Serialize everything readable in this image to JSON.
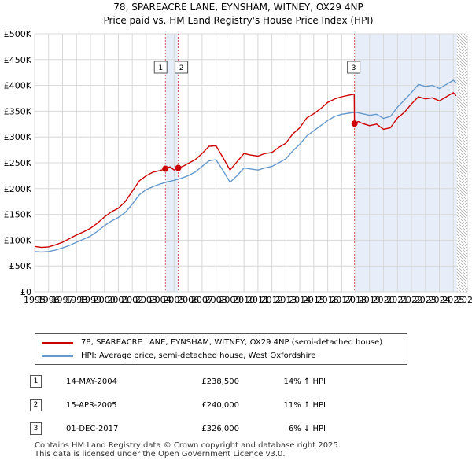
{
  "chart_data": {
    "type": "line",
    "title": "78, SPAREACRE LANE, EYNSHAM, WITNEY, OX29 4NP",
    "subtitle": "Price paid vs. HM Land Registry's House Price Index (HPI)",
    "xlabel": "",
    "ylabel": "",
    "xlim": [
      1995,
      2026
    ],
    "ylim": [
      0,
      500000
    ],
    "y_ticks": [
      0,
      50000,
      100000,
      150000,
      200000,
      250000,
      300000,
      350000,
      400000,
      450000,
      500000
    ],
    "y_tick_labels": [
      "£0",
      "£50K",
      "£100K",
      "£150K",
      "£200K",
      "£250K",
      "£300K",
      "£350K",
      "£400K",
      "£450K",
      "£500K"
    ],
    "x_ticks": [
      1995,
      1996,
      1997,
      1998,
      1999,
      2000,
      2001,
      2002,
      2003,
      2004,
      2005,
      2006,
      2007,
      2008,
      2009,
      2010,
      2011,
      2012,
      2013,
      2014,
      2015,
      2016,
      2017,
      2018,
      2019,
      2020,
      2021,
      2022,
      2023,
      2024,
      2025,
      2026
    ],
    "x_tick_labels": [
      "1995",
      "1996",
      "1997",
      "1998",
      "1999",
      "2000",
      "2001",
      "2002",
      "2003",
      "2004",
      "2005",
      "2006",
      "2007",
      "2008",
      "2009",
      "2010",
      "2011",
      "2012",
      "2013",
      "2014",
      "2015",
      "2016",
      "2017",
      "2018",
      "2019",
      "2020",
      "2021",
      "2022",
      "2023",
      "2024",
      "2025",
      "2026"
    ],
    "grid": true,
    "series": [
      {
        "name": "78, SPAREACRE LANE, EYNSHAM, WITNEY, OX29 4NP (semi-detached house)",
        "color": "#cc0000",
        "x": [
          1995.0,
          1995.5,
          1996.0,
          1996.5,
          1997.0,
          1997.5,
          1998.0,
          1998.5,
          1999.0,
          1999.5,
          2000.0,
          2000.5,
          2001.0,
          2001.5,
          2002.0,
          2002.5,
          2003.0,
          2003.5,
          2004.0,
          2004.37,
          2004.7,
          2005.0,
          2005.29,
          2005.7,
          2006.0,
          2006.5,
          2007.0,
          2007.5,
          2008.0,
          2008.5,
          2009.0,
          2009.5,
          2010.0,
          2010.5,
          2011.0,
          2011.5,
          2012.0,
          2012.5,
          2013.0,
          2013.5,
          2014.0,
          2014.5,
          2015.0,
          2015.5,
          2016.0,
          2016.5,
          2017.0,
          2017.5,
          2017.9,
          2017.92,
          2018.2,
          2018.5,
          2019.0,
          2019.5,
          2020.0,
          2020.5,
          2021.0,
          2021.5,
          2022.0,
          2022.5,
          2023.0,
          2023.5,
          2024.0,
          2024.5,
          2025.0,
          2025.2
        ],
        "values": [
          88000,
          86000,
          87000,
          91000,
          96000,
          103000,
          110000,
          116000,
          123000,
          133000,
          145000,
          155000,
          162000,
          175000,
          195000,
          215000,
          225000,
          232000,
          235000,
          238500,
          242000,
          236000,
          240000,
          244000,
          249000,
          256000,
          268000,
          282000,
          283000,
          260000,
          236000,
          252000,
          268000,
          265000,
          263000,
          268000,
          270000,
          280000,
          288000,
          306000,
          318000,
          337000,
          345000,
          355000,
          367000,
          374000,
          378000,
          381000,
          383000,
          326000,
          330000,
          326000,
          322000,
          325000,
          315000,
          318000,
          337000,
          348000,
          364000,
          378000,
          374000,
          376000,
          370000,
          378000,
          386000,
          380000
        ]
      },
      {
        "name": "HPI: Average price, semi-detached house, West Oxfordshire",
        "color": "#6699cc",
        "x": [
          1995.0,
          1995.5,
          1996.0,
          1996.5,
          1997.0,
          1997.5,
          1998.0,
          1998.5,
          1999.0,
          1999.5,
          2000.0,
          2000.5,
          2001.0,
          2001.5,
          2002.0,
          2002.5,
          2003.0,
          2003.5,
          2004.0,
          2004.5,
          2005.0,
          2005.5,
          2006.0,
          2006.5,
          2007.0,
          2007.5,
          2008.0,
          2008.5,
          2009.0,
          2009.5,
          2010.0,
          2010.5,
          2011.0,
          2011.5,
          2012.0,
          2012.5,
          2013.0,
          2013.5,
          2014.0,
          2014.5,
          2015.0,
          2015.5,
          2016.0,
          2016.5,
          2017.0,
          2017.5,
          2018.0,
          2018.5,
          2019.0,
          2019.5,
          2020.0,
          2020.5,
          2021.0,
          2021.5,
          2022.0,
          2022.5,
          2023.0,
          2023.5,
          2024.0,
          2024.5,
          2025.0,
          2025.2
        ],
        "values": [
          78000,
          77000,
          78000,
          81000,
          85000,
          90000,
          96000,
          102000,
          108000,
          117000,
          128000,
          137000,
          144000,
          154000,
          170000,
          188000,
          198000,
          204000,
          209000,
          213000,
          216000,
          220000,
          225000,
          232000,
          243000,
          254000,
          256000,
          235000,
          212000,
          225000,
          240000,
          238000,
          236000,
          240000,
          243000,
          250000,
          258000,
          273000,
          286000,
          302000,
          312000,
          322000,
          332000,
          340000,
          344000,
          346000,
          348000,
          345000,
          342000,
          344000,
          336000,
          340000,
          358000,
          372000,
          386000,
          402000,
          398000,
          400000,
          394000,
          402000,
          410000,
          405000
        ]
      }
    ],
    "sales": [
      {
        "label": "1",
        "x": 2004.37,
        "value": 238500,
        "date": "14-MAY-2004",
        "price": "£238,500",
        "hpi_delta": "14% ↑ HPI"
      },
      {
        "label": "2",
        "x": 2005.29,
        "value": 240000,
        "date": "15-APR-2005",
        "price": "£240,000",
        "hpi_delta": "11% ↑ HPI"
      },
      {
        "label": "3",
        "x": 2017.92,
        "value": 326000,
        "date": "01-DEC-2017",
        "price": "£326,000",
        "hpi_delta": "6% ↓ HPI"
      }
    ],
    "legend_position": "bottom",
    "shaded_regions": [
      [
        2004.37,
        2005.29
      ],
      [
        2017.92,
        2025.25
      ]
    ],
    "hatched_region": [
      2025.25,
      2026.0
    ],
    "colors": {
      "sale_line": "#cc0000",
      "hpi_line": "#6699cc",
      "shade": "#e8eef9",
      "grid": "#d8d8d8"
    }
  },
  "legend": {
    "property_label": "78, SPAREACRE LANE, EYNSHAM, WITNEY, OX29 4NP (semi-detached house)",
    "hpi_label": "HPI: Average price, semi-detached house, West Oxfordshire"
  },
  "footer": {
    "line1": "Contains HM Land Registry data © Crown copyright and database right 2025.",
    "line2": "This data is licensed under the Open Government Licence v3.0."
  }
}
